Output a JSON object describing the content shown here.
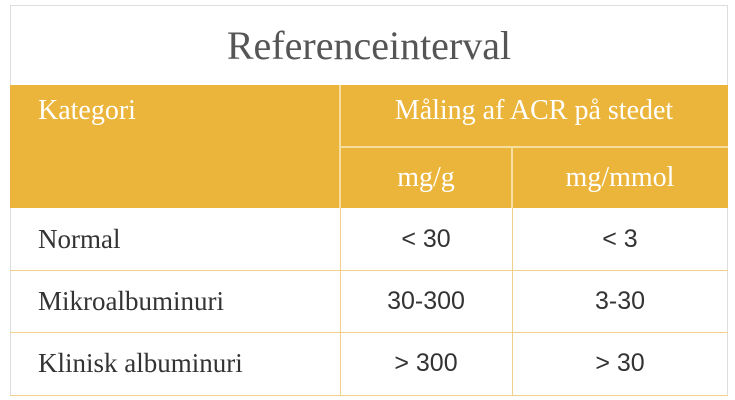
{
  "title": "Referenceinterval",
  "header": {
    "category": "Kategori",
    "measure": "Måling af ACR på stedet",
    "units": [
      "mg/g",
      "mg/mmol"
    ]
  },
  "rows": [
    [
      "Normal",
      "< 30",
      "< 3"
    ],
    [
      "Mikroalbuminuri",
      "30-300",
      "3-30"
    ],
    [
      "Klinisk albuminuri",
      "> 300",
      "> 30"
    ]
  ]
}
